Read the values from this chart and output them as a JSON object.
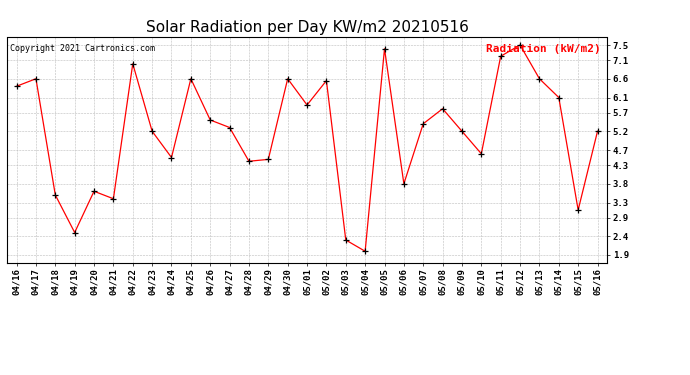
{
  "title": "Solar Radiation per Day KW/m2 20210516",
  "copyright_text": "Copyright 2021 Cartronics.com",
  "legend_label": "Radiation (kW/m2)",
  "dates": [
    "04/16",
    "04/17",
    "04/18",
    "04/19",
    "04/20",
    "04/21",
    "04/22",
    "04/23",
    "04/24",
    "04/25",
    "04/26",
    "04/27",
    "04/28",
    "04/29",
    "04/30",
    "05/01",
    "05/02",
    "05/03",
    "05/04",
    "05/05",
    "05/06",
    "05/07",
    "05/08",
    "05/09",
    "05/10",
    "05/11",
    "05/12",
    "05/13",
    "05/14",
    "05/15",
    "05/16"
  ],
  "values": [
    6.4,
    6.6,
    3.5,
    2.5,
    3.6,
    3.4,
    7.0,
    5.2,
    4.5,
    6.6,
    5.5,
    5.3,
    4.4,
    4.45,
    6.6,
    5.9,
    6.55,
    2.3,
    2.0,
    7.4,
    3.8,
    5.4,
    5.8,
    5.2,
    4.6,
    7.2,
    7.5,
    6.6,
    6.1,
    3.1,
    5.2
  ],
  "yticks": [
    1.9,
    2.4,
    2.9,
    3.3,
    3.8,
    4.3,
    4.7,
    5.2,
    5.7,
    6.1,
    6.6,
    7.1,
    7.5
  ],
  "ymin": 1.7,
  "ymax": 7.7,
  "line_color": "red",
  "marker_color": "black",
  "grid_color": "#bbbbbb",
  "title_fontsize": 11,
  "copyright_fontsize": 6,
  "legend_fontsize": 8,
  "tick_fontsize": 6.5,
  "bg_color": "white"
}
